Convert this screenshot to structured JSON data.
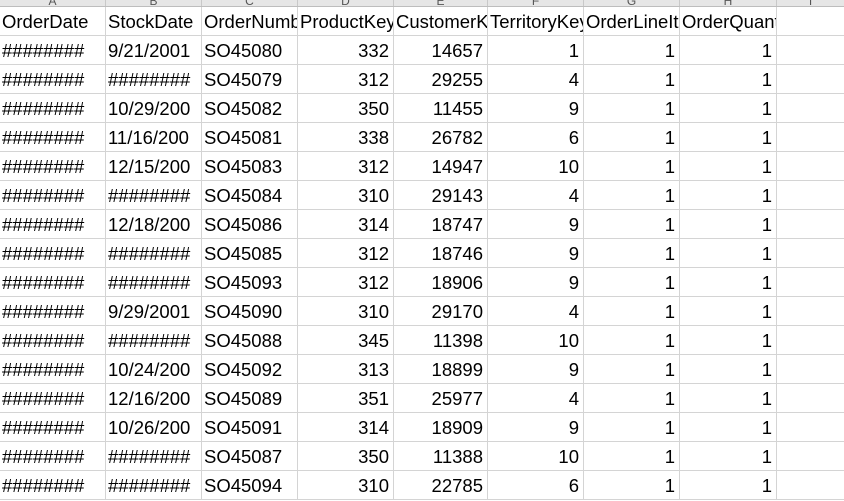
{
  "spreadsheet": {
    "column_letters": [
      "A",
      "B",
      "C",
      "D",
      "E",
      "F",
      "G",
      "H",
      "I"
    ],
    "headers": [
      "OrderDate",
      "StockDate",
      "OrderNumber",
      "ProductKey",
      "CustomerKey",
      "TerritoryKey",
      "OrderLineItem",
      "OrderQuantity",
      ""
    ],
    "rows": [
      [
        "########",
        "9/21/2001",
        "SO45080",
        "332",
        "14657",
        "1",
        "1",
        "1",
        ""
      ],
      [
        "########",
        "########",
        "SO45079",
        "312",
        "29255",
        "4",
        "1",
        "1",
        ""
      ],
      [
        "########",
        "10/29/200",
        "SO45082",
        "350",
        "11455",
        "9",
        "1",
        "1",
        ""
      ],
      [
        "########",
        "11/16/200",
        "SO45081",
        "338",
        "26782",
        "6",
        "1",
        "1",
        ""
      ],
      [
        "########",
        "12/15/200",
        "SO45083",
        "312",
        "14947",
        "10",
        "1",
        "1",
        ""
      ],
      [
        "########",
        "########",
        "SO45084",
        "310",
        "29143",
        "4",
        "1",
        "1",
        ""
      ],
      [
        "########",
        "12/18/200",
        "SO45086",
        "314",
        "18747",
        "9",
        "1",
        "1",
        ""
      ],
      [
        "########",
        "########",
        "SO45085",
        "312",
        "18746",
        "9",
        "1",
        "1",
        ""
      ],
      [
        "########",
        "########",
        "SO45093",
        "312",
        "18906",
        "9",
        "1",
        "1",
        ""
      ],
      [
        "########",
        "9/29/2001",
        "SO45090",
        "310",
        "29170",
        "4",
        "1",
        "1",
        ""
      ],
      [
        "########",
        "########",
        "SO45088",
        "345",
        "11398",
        "10",
        "1",
        "1",
        ""
      ],
      [
        "########",
        "10/24/200",
        "SO45092",
        "313",
        "18899",
        "9",
        "1",
        "1",
        ""
      ],
      [
        "########",
        "12/16/200",
        "SO45089",
        "351",
        "25977",
        "4",
        "1",
        "1",
        ""
      ],
      [
        "########",
        "10/26/200",
        "SO45091",
        "314",
        "18909",
        "9",
        "1",
        "1",
        ""
      ],
      [
        "########",
        "########",
        "SO45087",
        "350",
        "11388",
        "10",
        "1",
        "1",
        ""
      ],
      [
        "########",
        "########",
        "SO45094",
        "310",
        "22785",
        "6",
        "1",
        "1",
        ""
      ]
    ],
    "column_alignment": [
      "left",
      "left",
      "left",
      "right",
      "right",
      "right",
      "right",
      "right",
      "left"
    ]
  }
}
